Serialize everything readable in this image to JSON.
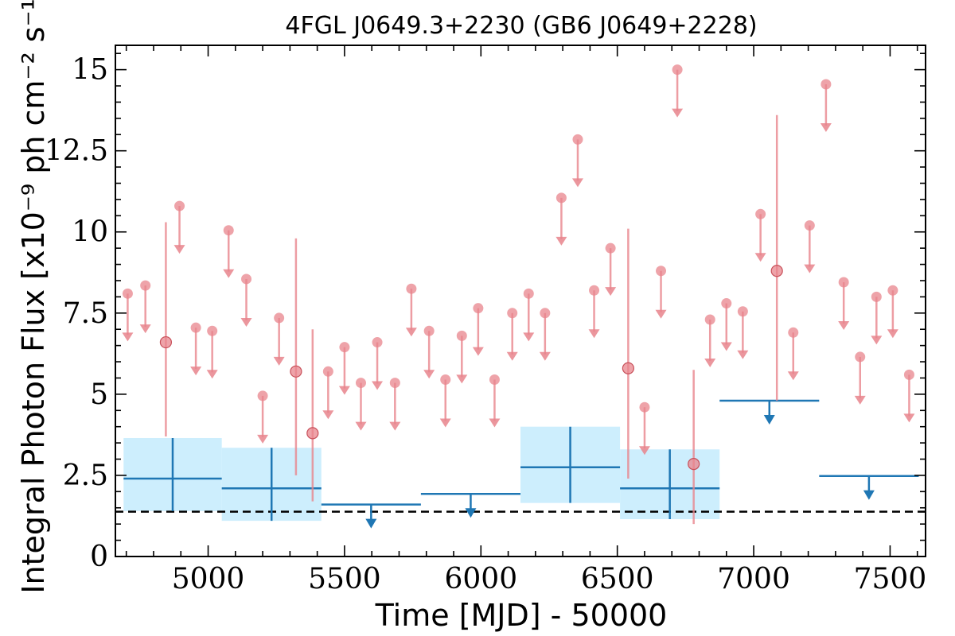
{
  "chart_data": {
    "type": "scatter",
    "title": "4FGL J0649.3+2230 (GB6 J0649+2228)",
    "xlabel": "Time [MJD] - 50000",
    "ylabel": "Integral Photon Flux [x10⁻⁹ ph cm⁻² s⁻¹]",
    "xlim": [
      4660,
      7630
    ],
    "ylim": [
      0,
      15.75
    ],
    "x_ticks": [
      5000,
      5500,
      6000,
      6500,
      7000,
      7500
    ],
    "x_tick_labels": [
      "5000",
      "5500",
      "6000",
      "6500",
      "7000",
      "7500"
    ],
    "y_ticks": [
      0,
      2.5,
      5,
      7.5,
      10,
      12.5,
      15
    ],
    "y_tick_labels": [
      "0",
      "2.5",
      "5",
      "7.5",
      "10",
      "12.5",
      "15"
    ],
    "reference_line": {
      "y": 1.38,
      "style": "dashed",
      "color": "#000000"
    },
    "colors": {
      "short_bins": "#e8848c",
      "long_bins": "#1f77b4",
      "long_bins_band": "#cdeefd"
    },
    "series": [
      {
        "binning": "short",
        "detections": [
          {
            "x": 4845,
            "y": 6.6,
            "y_low": 3.7,
            "y_high": 10.3
          },
          {
            "x": 5322,
            "y": 5.7,
            "y_low": 2.5,
            "y_high": 9.8
          },
          {
            "x": 5383,
            "y": 3.8,
            "y_low": 1.7,
            "y_high": 7.0
          },
          {
            "x": 6540,
            "y": 5.8,
            "y_low": 2.4,
            "y_high": 10.1
          },
          {
            "x": 6780,
            "y": 2.85,
            "y_low": 1.0,
            "y_high": 5.75
          },
          {
            "x": 7085,
            "y": 8.8,
            "y_low": 4.8,
            "y_high": 13.6
          }
        ],
        "upper_limits": [
          {
            "x": 4705,
            "y": 8.1
          },
          {
            "x": 4770,
            "y": 8.35
          },
          {
            "x": 4895,
            "y": 10.8
          },
          {
            "x": 4955,
            "y": 7.05
          },
          {
            "x": 5015,
            "y": 6.95
          },
          {
            "x": 5075,
            "y": 10.05
          },
          {
            "x": 5140,
            "y": 8.55
          },
          {
            "x": 5200,
            "y": 4.95
          },
          {
            "x": 5260,
            "y": 7.35
          },
          {
            "x": 5440,
            "y": 5.7
          },
          {
            "x": 5500,
            "y": 6.45
          },
          {
            "x": 5560,
            "y": 5.35
          },
          {
            "x": 5620,
            "y": 6.6
          },
          {
            "x": 5685,
            "y": 5.35
          },
          {
            "x": 5745,
            "y": 8.25
          },
          {
            "x": 5810,
            "y": 6.95
          },
          {
            "x": 5870,
            "y": 5.45
          },
          {
            "x": 5930,
            "y": 6.8
          },
          {
            "x": 5990,
            "y": 7.65
          },
          {
            "x": 6050,
            "y": 5.45
          },
          {
            "x": 6115,
            "y": 7.5
          },
          {
            "x": 6175,
            "y": 8.1
          },
          {
            "x": 6235,
            "y": 7.5
          },
          {
            "x": 6295,
            "y": 11.05
          },
          {
            "x": 6355,
            "y": 12.85
          },
          {
            "x": 6415,
            "y": 8.2
          },
          {
            "x": 6475,
            "y": 9.5
          },
          {
            "x": 6600,
            "y": 4.6
          },
          {
            "x": 6660,
            "y": 8.8
          },
          {
            "x": 6720,
            "y": 15.0
          },
          {
            "x": 6840,
            "y": 7.3
          },
          {
            "x": 6900,
            "y": 7.8
          },
          {
            "x": 6960,
            "y": 7.55
          },
          {
            "x": 7025,
            "y": 10.55
          },
          {
            "x": 7145,
            "y": 6.9
          },
          {
            "x": 7205,
            "y": 10.2
          },
          {
            "x": 7265,
            "y": 14.55
          },
          {
            "x": 7330,
            "y": 8.45
          },
          {
            "x": 7390,
            "y": 6.15
          },
          {
            "x": 7450,
            "y": 8.0
          },
          {
            "x": 7510,
            "y": 8.2
          },
          {
            "x": 7570,
            "y": 5.6
          }
        ]
      },
      {
        "binning": "long",
        "detections": [
          {
            "x_start": 4690,
            "x_end": 5050,
            "y": 2.4,
            "y_low": 1.4,
            "y_high": 3.65
          },
          {
            "x_start": 5050,
            "x_end": 5415,
            "y": 2.1,
            "y_low": 1.1,
            "y_high": 3.35
          },
          {
            "x_start": 6145,
            "x_end": 6510,
            "y": 2.75,
            "y_low": 1.65,
            "y_high": 4.0
          },
          {
            "x_start": 6510,
            "x_end": 6875,
            "y": 2.1,
            "y_low": 1.15,
            "y_high": 3.3
          }
        ],
        "upper_limits": [
          {
            "x_start": 5415,
            "x_end": 5780,
            "y": 1.6
          },
          {
            "x_start": 5780,
            "x_end": 6145,
            "y": 1.93
          },
          {
            "x_start": 6875,
            "x_end": 7240,
            "y": 4.8
          },
          {
            "x_start": 7240,
            "x_end": 7605,
            "y": 2.48
          }
        ]
      }
    ]
  }
}
